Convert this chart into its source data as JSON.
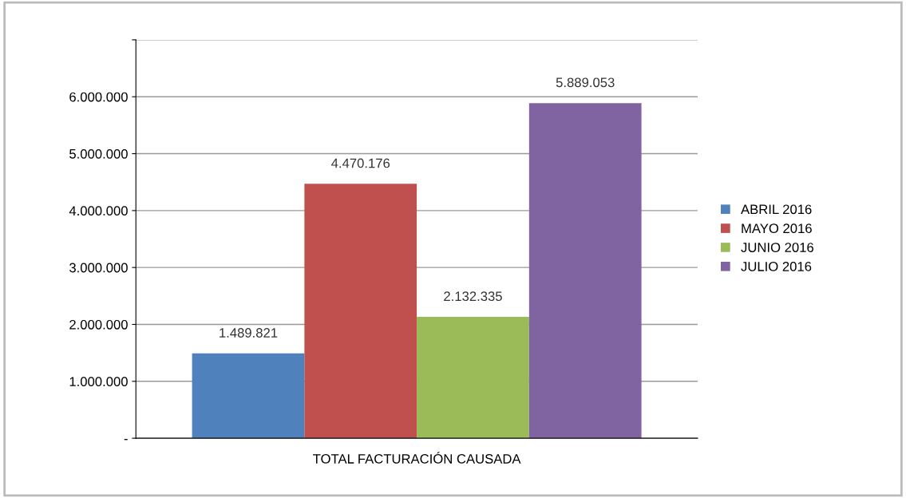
{
  "chart_data": {
    "type": "bar",
    "categories": [
      "TOTAL FACTURACIÓN CAUSADA"
    ],
    "series": [
      {
        "name": "ABRIL 2016",
        "color": "#4f81bd",
        "values": [
          1489821
        ],
        "value_labels": [
          "1.489.821"
        ]
      },
      {
        "name": "MAYO 2016",
        "color": "#c0504d",
        "values": [
          4470176
        ],
        "value_labels": [
          "4.470.176"
        ]
      },
      {
        "name": "JUNIO 2016",
        "color": "#9bbb59",
        "values": [
          2132335
        ],
        "value_labels": [
          "2.132.335"
        ]
      },
      {
        "name": "JULIO 2016",
        "color": "#8064a2",
        "values": [
          5889053
        ],
        "value_labels": [
          "5.889.053"
        ]
      }
    ],
    "ylim": [
      0,
      7000000
    ],
    "yticks": [
      {
        "value": 0,
        "label": "-"
      },
      {
        "value": 1000000,
        "label": "1.000.000"
      },
      {
        "value": 2000000,
        "label": "2.000.000"
      },
      {
        "value": 3000000,
        "label": "3.000.000"
      },
      {
        "value": 4000000,
        "label": "4.000.000"
      },
      {
        "value": 5000000,
        "label": "5.000.000"
      },
      {
        "value": 6000000,
        "label": "6.000.000"
      },
      {
        "value": 7000000,
        "label": null
      }
    ],
    "grid": "y",
    "legend": "right"
  }
}
